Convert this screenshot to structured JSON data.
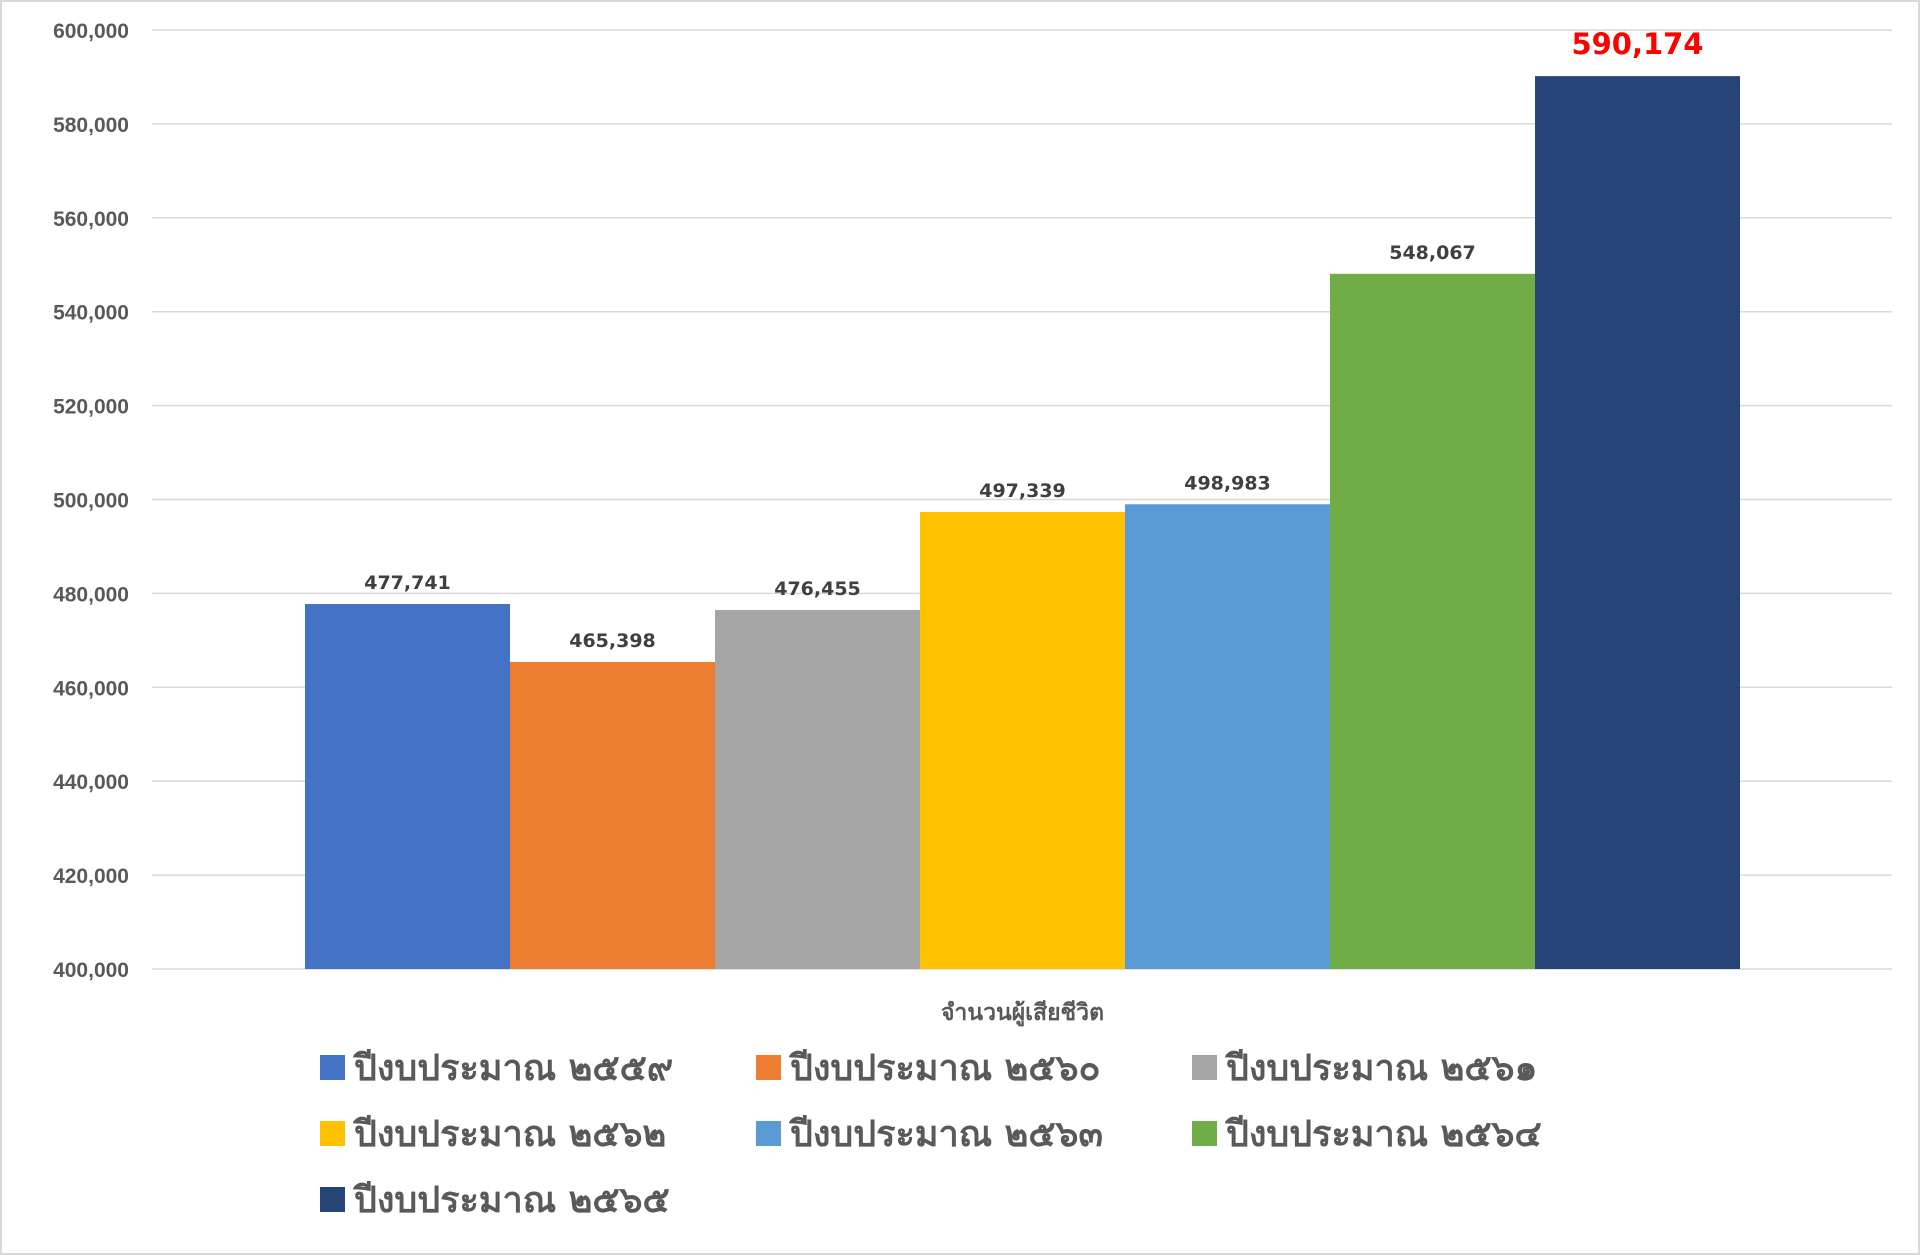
{
  "chart_data": {
    "type": "bar",
    "categories": [
      "จำนวนผู้เสียชีวิต"
    ],
    "series": [
      {
        "name": "ปีงบประมาณ ๒๕๕๙",
        "values": [
          477741
        ],
        "label": "477,741",
        "color": "#4472C4"
      },
      {
        "name": "ปีงบประมาณ ๒๕๖๐",
        "values": [
          465398
        ],
        "label": "465,398",
        "color": "#ED7D31"
      },
      {
        "name": "ปีงบประมาณ ๒๕๖๑",
        "values": [
          476455
        ],
        "label": "476,455",
        "color": "#A5A5A5"
      },
      {
        "name": "ปีงบประมาณ ๒๕๖๒",
        "values": [
          497339
        ],
        "label": "497,339",
        "color": "#FFC000"
      },
      {
        "name": "ปีงบประมาณ ๒๕๖๓",
        "values": [
          498983
        ],
        "label": "498,983",
        "color": "#5B9BD5"
      },
      {
        "name": "ปีงบประมาณ ๒๕๖๔",
        "values": [
          548067
        ],
        "label": "548,067",
        "color": "#70AD47"
      },
      {
        "name": "ปีงบประมาณ ๒๕๖๕",
        "values": [
          590174
        ],
        "label": "590,174",
        "color": "#264478",
        "label_color": "#FF0000"
      }
    ],
    "ylim": [
      400000,
      600000
    ],
    "yticks": [
      "400,000",
      "420,000",
      "440,000",
      "460,000",
      "480,000",
      "500,000",
      "520,000",
      "540,000",
      "560,000",
      "580,000",
      "600,000"
    ],
    "grid": true,
    "legend_position": "bottom"
  }
}
